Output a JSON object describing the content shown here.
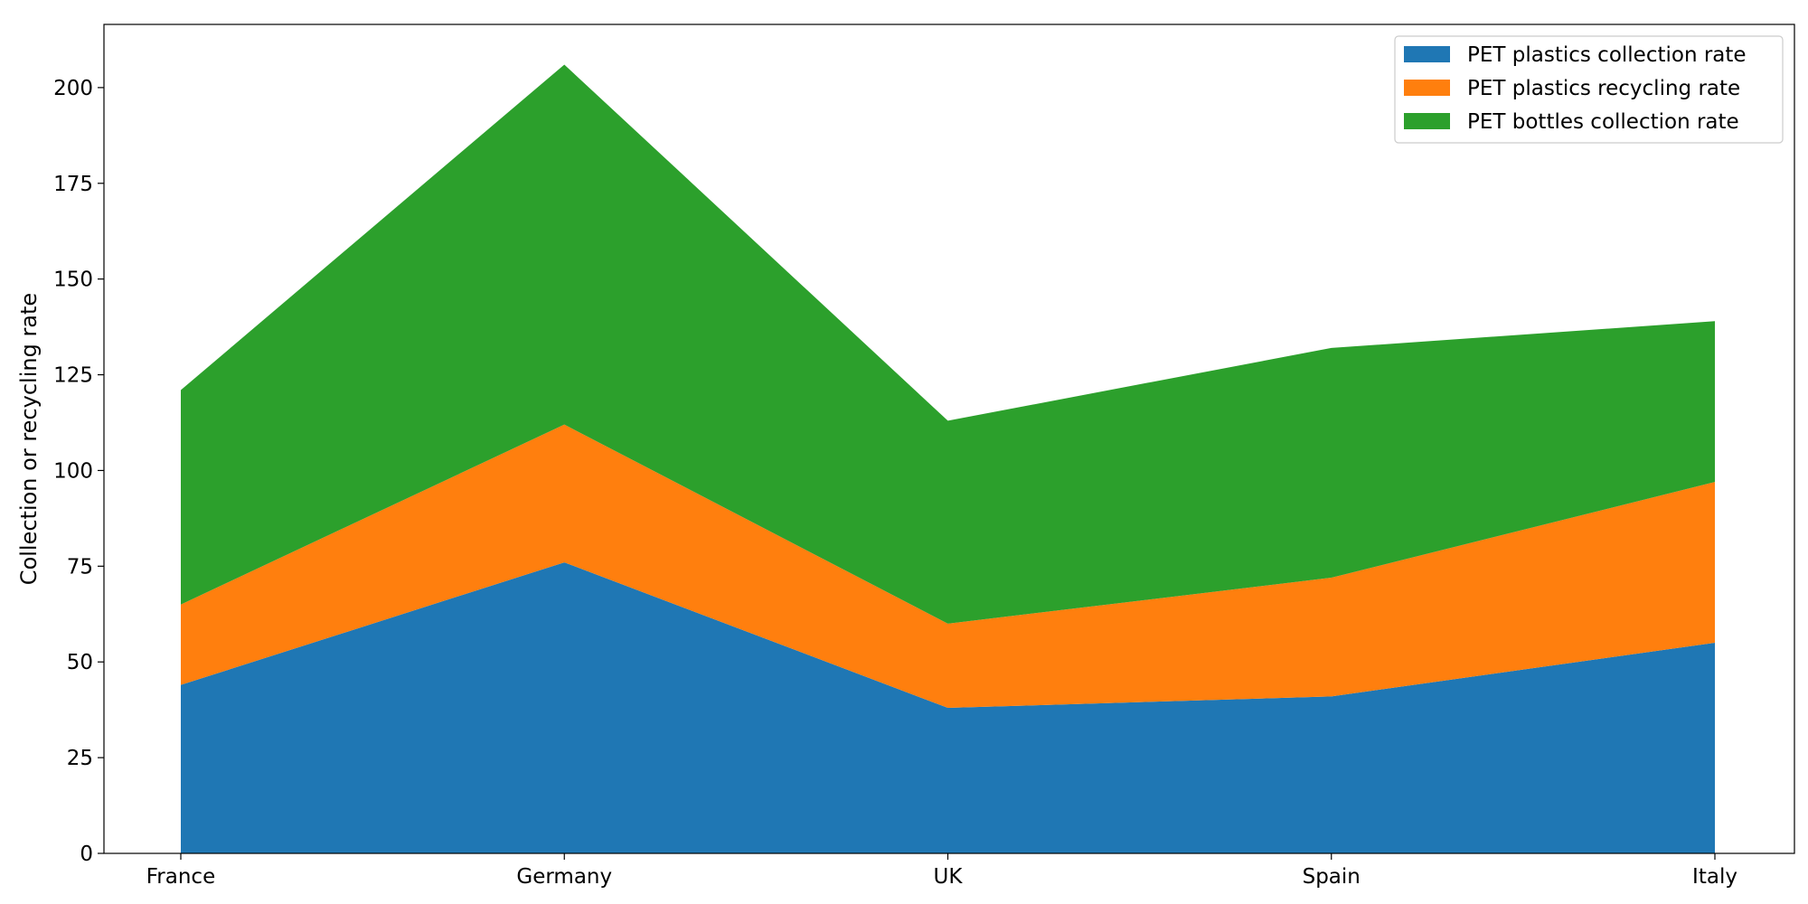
{
  "chart_data": {
    "type": "area",
    "stacked": true,
    "categories": [
      "France",
      "Germany",
      "UK",
      "Spain",
      "Italy"
    ],
    "series": [
      {
        "name": "PET plastics collection rate",
        "values": [
          44,
          76,
          38,
          41,
          55
        ],
        "color": "#1f77b4"
      },
      {
        "name": "PET plastics recycling rate",
        "values": [
          21,
          36,
          22,
          31,
          42
        ],
        "color": "#ff7f0e"
      },
      {
        "name": "PET bottles collection rate",
        "values": [
          56,
          94,
          53,
          60,
          42
        ],
        "color": "#2ca02c"
      }
    ],
    "xlabel": "",
    "ylabel": "Collection or recycling rate",
    "ylim": [
      0,
      216.5
    ],
    "yticks": [
      0,
      25,
      50,
      75,
      100,
      125,
      150,
      175,
      200
    ],
    "grid": false,
    "legend_position": "top-right"
  }
}
